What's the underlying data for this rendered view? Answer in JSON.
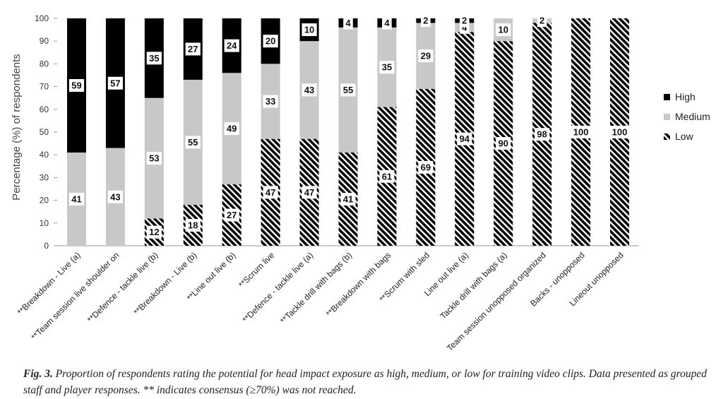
{
  "chart_data": {
    "type": "stacked-bar",
    "ylabel": "Percentage (%) of respondents",
    "ylim": [
      0,
      100
    ],
    "yticks": [
      0,
      10,
      20,
      30,
      40,
      50,
      60,
      70,
      80,
      90,
      100
    ],
    "categories": [
      "**Breakdown - Live (a)",
      "**Team session live shoulder on",
      "**Defence - tackle live (b)",
      "**Breakdown - Live (b)",
      "**Line out live (b)",
      "**Scrum live",
      "**Defence - tackle live (a)",
      "**Tackle drill with bags (b)",
      "**Breakdown with bags",
      "**Scrum with sled",
      "Line out live (a)",
      "Tackle drill with bags (a)",
      "Team session unopposed organized",
      "Backs - unopposed",
      "Lineout unopposed"
    ],
    "series": [
      {
        "name": "Low",
        "color": "#1a1a1a",
        "pattern": "hatch",
        "values": [
          0,
          0,
          12,
          18,
          27,
          47,
          47,
          41,
          61,
          69,
          94,
          90,
          98,
          100,
          100
        ]
      },
      {
        "name": "Medium",
        "color": "#c8c8c8",
        "values": [
          41,
          43,
          53,
          55,
          49,
          33,
          43,
          55,
          35,
          29,
          4,
          10,
          2,
          0,
          0
        ]
      },
      {
        "name": "High",
        "color": "#000000",
        "values": [
          59,
          57,
          35,
          27,
          24,
          20,
          10,
          4,
          4,
          2,
          2,
          0,
          0,
          0,
          0
        ]
      }
    ],
    "labels": [
      {
        "series": "Medium",
        "text": "41"
      },
      {
        "series": "High",
        "text": "59"
      },
      {
        "series": "Medium",
        "text": "43"
      },
      {
        "series": "High",
        "text": "57"
      },
      {
        "series": "Low",
        "text": "12"
      },
      {
        "series": "Medium",
        "text": "53"
      },
      {
        "series": "High",
        "text": "35"
      },
      {
        "series": "Low",
        "text": "18"
      },
      {
        "series": "Medium",
        "text": "55"
      },
      {
        "series": "High",
        "text": "27"
      },
      {
        "series": "Low",
        "text": "27"
      },
      {
        "series": "Medium",
        "text": "49"
      },
      {
        "series": "High",
        "text": "24"
      },
      {
        "series": "Low",
        "text": "47"
      },
      {
        "series": "Medium",
        "text": "33"
      },
      {
        "series": "High",
        "text": "20"
      },
      {
        "series": "Low",
        "text": "47"
      },
      {
        "series": "Medium",
        "text": "43"
      },
      {
        "series": "High",
        "text": "10"
      },
      {
        "series": "Low",
        "text": "41"
      },
      {
        "series": "Medium",
        "text": "55"
      },
      {
        "series": "High",
        "text": "4"
      },
      {
        "series": "Low",
        "text": "61"
      },
      {
        "series": "Medium",
        "text": "35"
      },
      {
        "series": "High",
        "text": "4"
      },
      {
        "series": "Low",
        "text": "69"
      },
      {
        "series": "Medium",
        "text": "29"
      },
      {
        "series": "High",
        "text": "2"
      },
      {
        "series": "Low",
        "text": "94"
      },
      {
        "series": "Medium",
        "text": "4"
      },
      {
        "series": "High",
        "text": "2"
      },
      {
        "series": "Low",
        "text": "90"
      },
      {
        "series": "Medium",
        "text": "10"
      },
      {
        "series": "Low",
        "text": "98"
      },
      {
        "series": "Medium",
        "text": "2"
      },
      {
        "series": "Low",
        "text": "100"
      },
      {
        "series": "Low",
        "text": "100"
      }
    ],
    "legend": {
      "position": "right",
      "order": [
        "High",
        "Medium",
        "Low"
      ]
    }
  },
  "legend": {
    "high": "High",
    "medium": "Medium",
    "low": "Low"
  },
  "caption": {
    "prefix": "Fig. 3.",
    "text": "Proportion of respondents rating the potential for head impact exposure as high, medium, or low for training video clips. Data presented as grouped staff and player responses. ** indicates consensus (≥70%) was not reached."
  }
}
